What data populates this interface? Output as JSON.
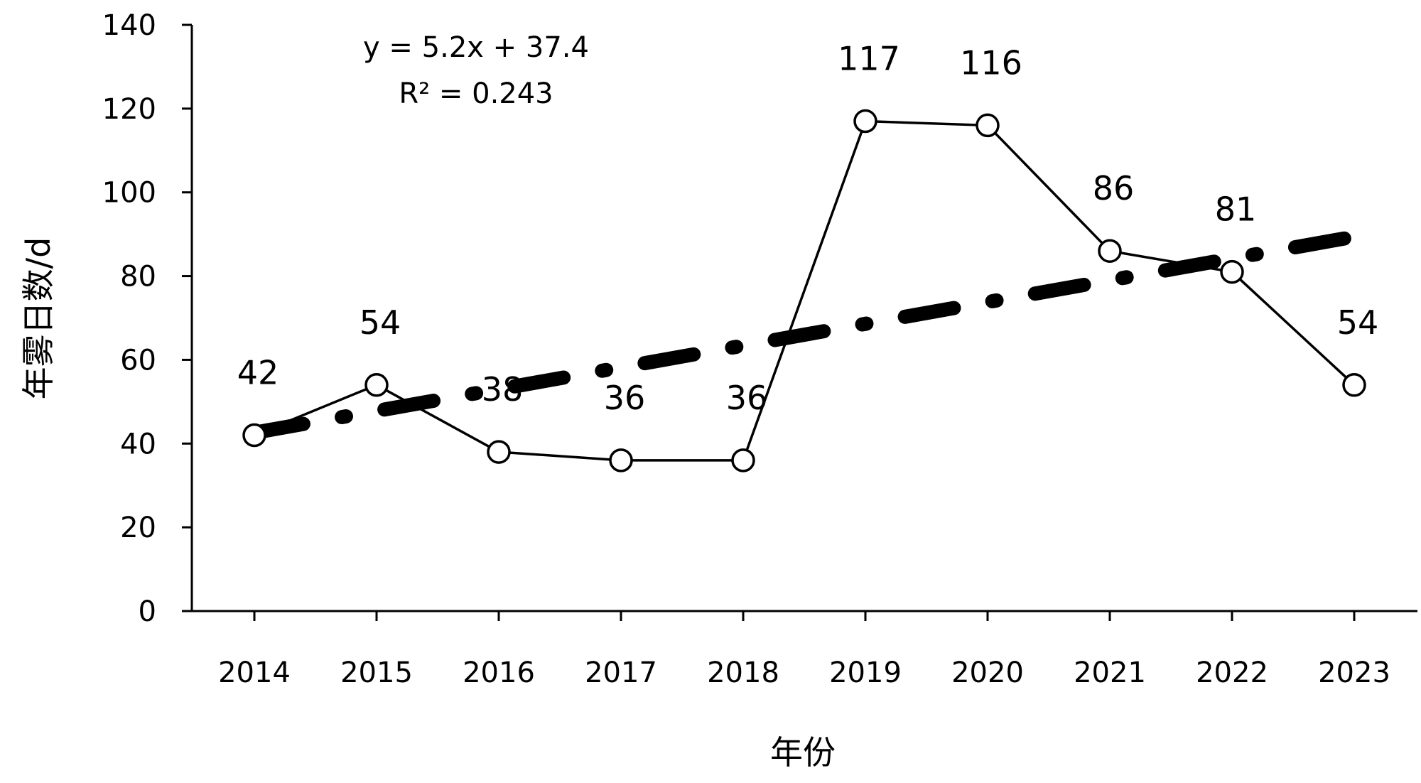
{
  "chart_data": {
    "type": "line",
    "xlabel": "年份",
    "ylabel": "年雾日数/d",
    "ylim": [
      0,
      140
    ],
    "y_ticks": [
      "0",
      "20",
      "40",
      "60",
      "80",
      "100",
      "120",
      "140"
    ],
    "categories": [
      "2014",
      "2015",
      "2016",
      "2017",
      "2018",
      "2019",
      "2020",
      "2021",
      "2022",
      "2023"
    ],
    "series": [
      {
        "values": [
          42,
          54,
          38,
          36,
          36,
          117,
          116,
          86,
          81,
          54
        ],
        "data_labels": [
          "42",
          "54",
          "38",
          "36",
          "36",
          "117",
          "116",
          "86",
          "81",
          "54"
        ],
        "line_color": "#000000",
        "marker": "open-circle"
      }
    ],
    "trendline": {
      "kind": "linear",
      "slope": 5.2,
      "intercept": 37.4,
      "style": "dash-dot",
      "color": "#000000"
    },
    "annotations": {
      "equation": "y = 5.2x + 37.4",
      "r_squared": "R² = 0.243"
    },
    "grid": false,
    "legend": "none"
  }
}
